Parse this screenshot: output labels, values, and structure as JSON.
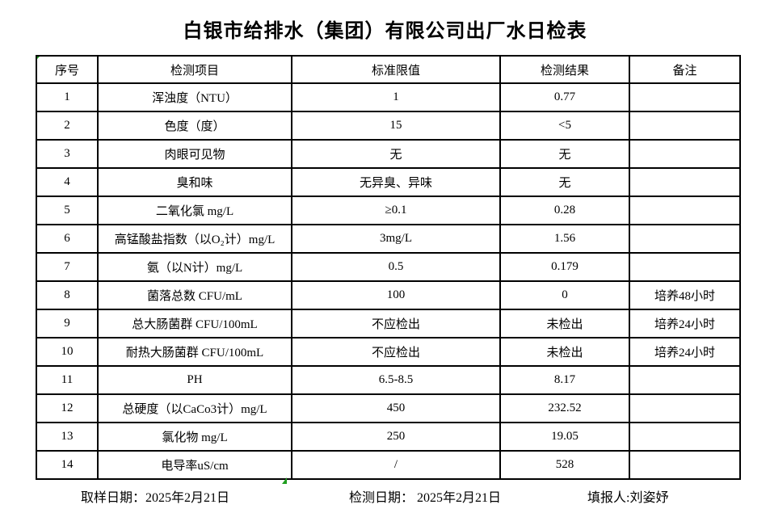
{
  "title": "白银市给排水（集团）有限公司出厂水日检表",
  "table": {
    "headers": {
      "no": "序号",
      "item": "检测项目",
      "standard": "标准限值",
      "result": "检测结果",
      "remark": "备注"
    },
    "rows": [
      {
        "no": "1",
        "item": "浑浊度（NTU）",
        "standard": "1",
        "result": "0.77",
        "remark": ""
      },
      {
        "no": "2",
        "item": "色度（度）",
        "standard": "15",
        "result": "<5",
        "remark": ""
      },
      {
        "no": "3",
        "item": "肉眼可见物",
        "standard": "无",
        "result": "无",
        "remark": ""
      },
      {
        "no": "4",
        "item": "臭和味",
        "standard": "无异臭、异味",
        "result": "无",
        "remark": ""
      },
      {
        "no": "5",
        "item": "二氧化氯 mg/L",
        "standard": "≥0.1",
        "result": "0.28",
        "remark": ""
      },
      {
        "no": "6",
        "item": "高锰酸盐指数（以O₂计）mg/L",
        "standard": "3mg/L",
        "result": "1.56",
        "remark": ""
      },
      {
        "no": "7",
        "item": "氨（以N计）mg/L",
        "standard": "0.5",
        "result": "0.179",
        "remark": ""
      },
      {
        "no": "8",
        "item": "菌落总数 CFU/mL",
        "standard": "100",
        "result": "0",
        "remark": "培养48小时"
      },
      {
        "no": "9",
        "item": "总大肠菌群 CFU/100mL",
        "standard": "不应检出",
        "result": "未检出",
        "remark": "培养24小时"
      },
      {
        "no": "10",
        "item": "耐热大肠菌群 CFU/100mL",
        "standard": "不应检出",
        "result": "未检出",
        "remark": "培养24小时"
      },
      {
        "no": "11",
        "item": "PH",
        "standard": "6.5-8.5",
        "result": "8.17",
        "remark": ""
      },
      {
        "no": "12",
        "item": "总硬度（以CaCo3计）mg/L",
        "standard": "450",
        "result": "232.52",
        "remark": ""
      },
      {
        "no": "13",
        "item": "氯化物 mg/L",
        "standard": "250",
        "result": "19.05",
        "remark": ""
      },
      {
        "no": "14",
        "item": "电导率uS/cm",
        "standard": "/",
        "result": "528",
        "remark": ""
      }
    ]
  },
  "footer": {
    "sample_date": "取样日期：2025年2月21日",
    "test_date": "检测日期： 2025年2月21日",
    "reporter": "填报人:刘姿妤"
  },
  "colors": {
    "text": "#000000",
    "border": "#000000",
    "background": "#ffffff",
    "marker_green": "#1f9e1f"
  }
}
